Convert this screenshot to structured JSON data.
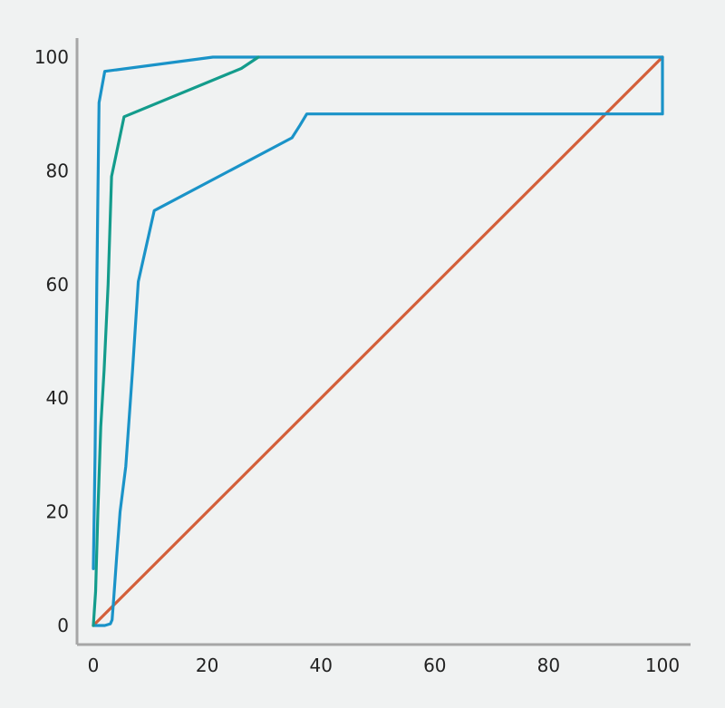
{
  "chart_data": {
    "type": "line",
    "title": "",
    "xlabel": "",
    "ylabel": "",
    "xlim": [
      0,
      100
    ],
    "ylim": [
      0,
      100
    ],
    "x_ticks": [
      0,
      20,
      40,
      60,
      80,
      100
    ],
    "y_ticks": [
      0,
      20,
      40,
      60,
      80,
      100
    ],
    "grid": false,
    "legend": "none",
    "series": [
      {
        "color": "#d35f3a",
        "x": [
          0,
          100
        ],
        "y": [
          0,
          100
        ]
      },
      {
        "color": "#1a93c8",
        "x": [
          0,
          0.3,
          0.6,
          1,
          2,
          21,
          29,
          100,
          100,
          37.5,
          36.3,
          34.9,
          10.7,
          7.9,
          6.9,
          5.7,
          4.7,
          4.1,
          3.6,
          3.3,
          3.0,
          2.0,
          0.5,
          0
        ],
        "y": [
          10,
          30,
          60,
          92,
          97.5,
          100,
          100,
          100,
          90,
          90,
          88,
          85.8,
          73,
          60.5,
          45,
          28,
          20,
          12,
          5,
          1,
          0.3,
          0,
          0,
          0
        ]
      },
      {
        "color": "#139c8c",
        "x": [
          0,
          0.4,
          0.8,
          1.3,
          1.9,
          2.6,
          3.2,
          5.4,
          26,
          29
        ],
        "y": [
          0,
          6,
          20,
          35,
          45,
          60,
          79,
          89.5,
          98,
          100
        ]
      }
    ]
  }
}
